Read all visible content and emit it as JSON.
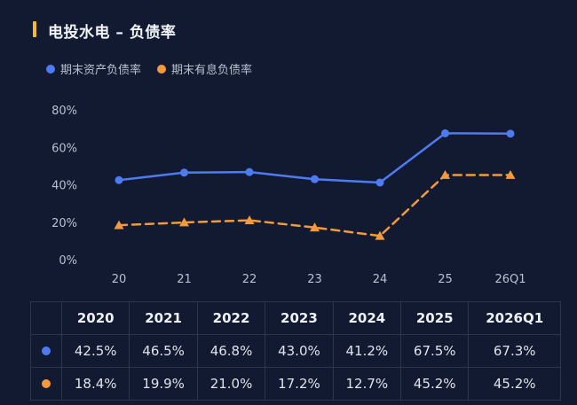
{
  "header": {
    "title": "电投水电 – 负债率"
  },
  "colors": {
    "series1": "#4f7bf2",
    "series2": "#f29a3c",
    "grid": "#2a3550"
  },
  "legend": [
    {
      "label": "期末资产负债率",
      "color": "#4f7bf2"
    },
    {
      "label": "期末有息负债率",
      "color": "#f29a3c"
    }
  ],
  "chart_data": {
    "type": "line",
    "title": "电投水电 – 负债率",
    "categories": [
      "20",
      "21",
      "22",
      "23",
      "24",
      "25",
      "26Q1"
    ],
    "y_ticks": [
      "0%",
      "20%",
      "40%",
      "60%",
      "80%"
    ],
    "ylim": [
      0,
      80
    ],
    "grid": false,
    "legend_position": "top-left",
    "series": [
      {
        "name": "期末资产负债率",
        "values": [
          42.5,
          46.5,
          46.8,
          43.0,
          41.2,
          67.5,
          67.3
        ],
        "style": "solid",
        "marker": "circle"
      },
      {
        "name": "期末有息负债率",
        "values": [
          18.4,
          19.9,
          21.0,
          17.2,
          12.7,
          45.2,
          45.2
        ],
        "style": "dashed",
        "marker": "triangle"
      }
    ]
  },
  "table": {
    "headers": [
      "2020",
      "2021",
      "2022",
      "2023",
      "2024",
      "2025",
      "2026Q1"
    ],
    "rows": [
      [
        "42.5%",
        "46.5%",
        "46.8%",
        "43.0%",
        "41.2%",
        "67.5%",
        "67.3%"
      ],
      [
        "18.4%",
        "19.9%",
        "21.0%",
        "17.2%",
        "12.7%",
        "45.2%",
        "45.2%"
      ]
    ]
  }
}
